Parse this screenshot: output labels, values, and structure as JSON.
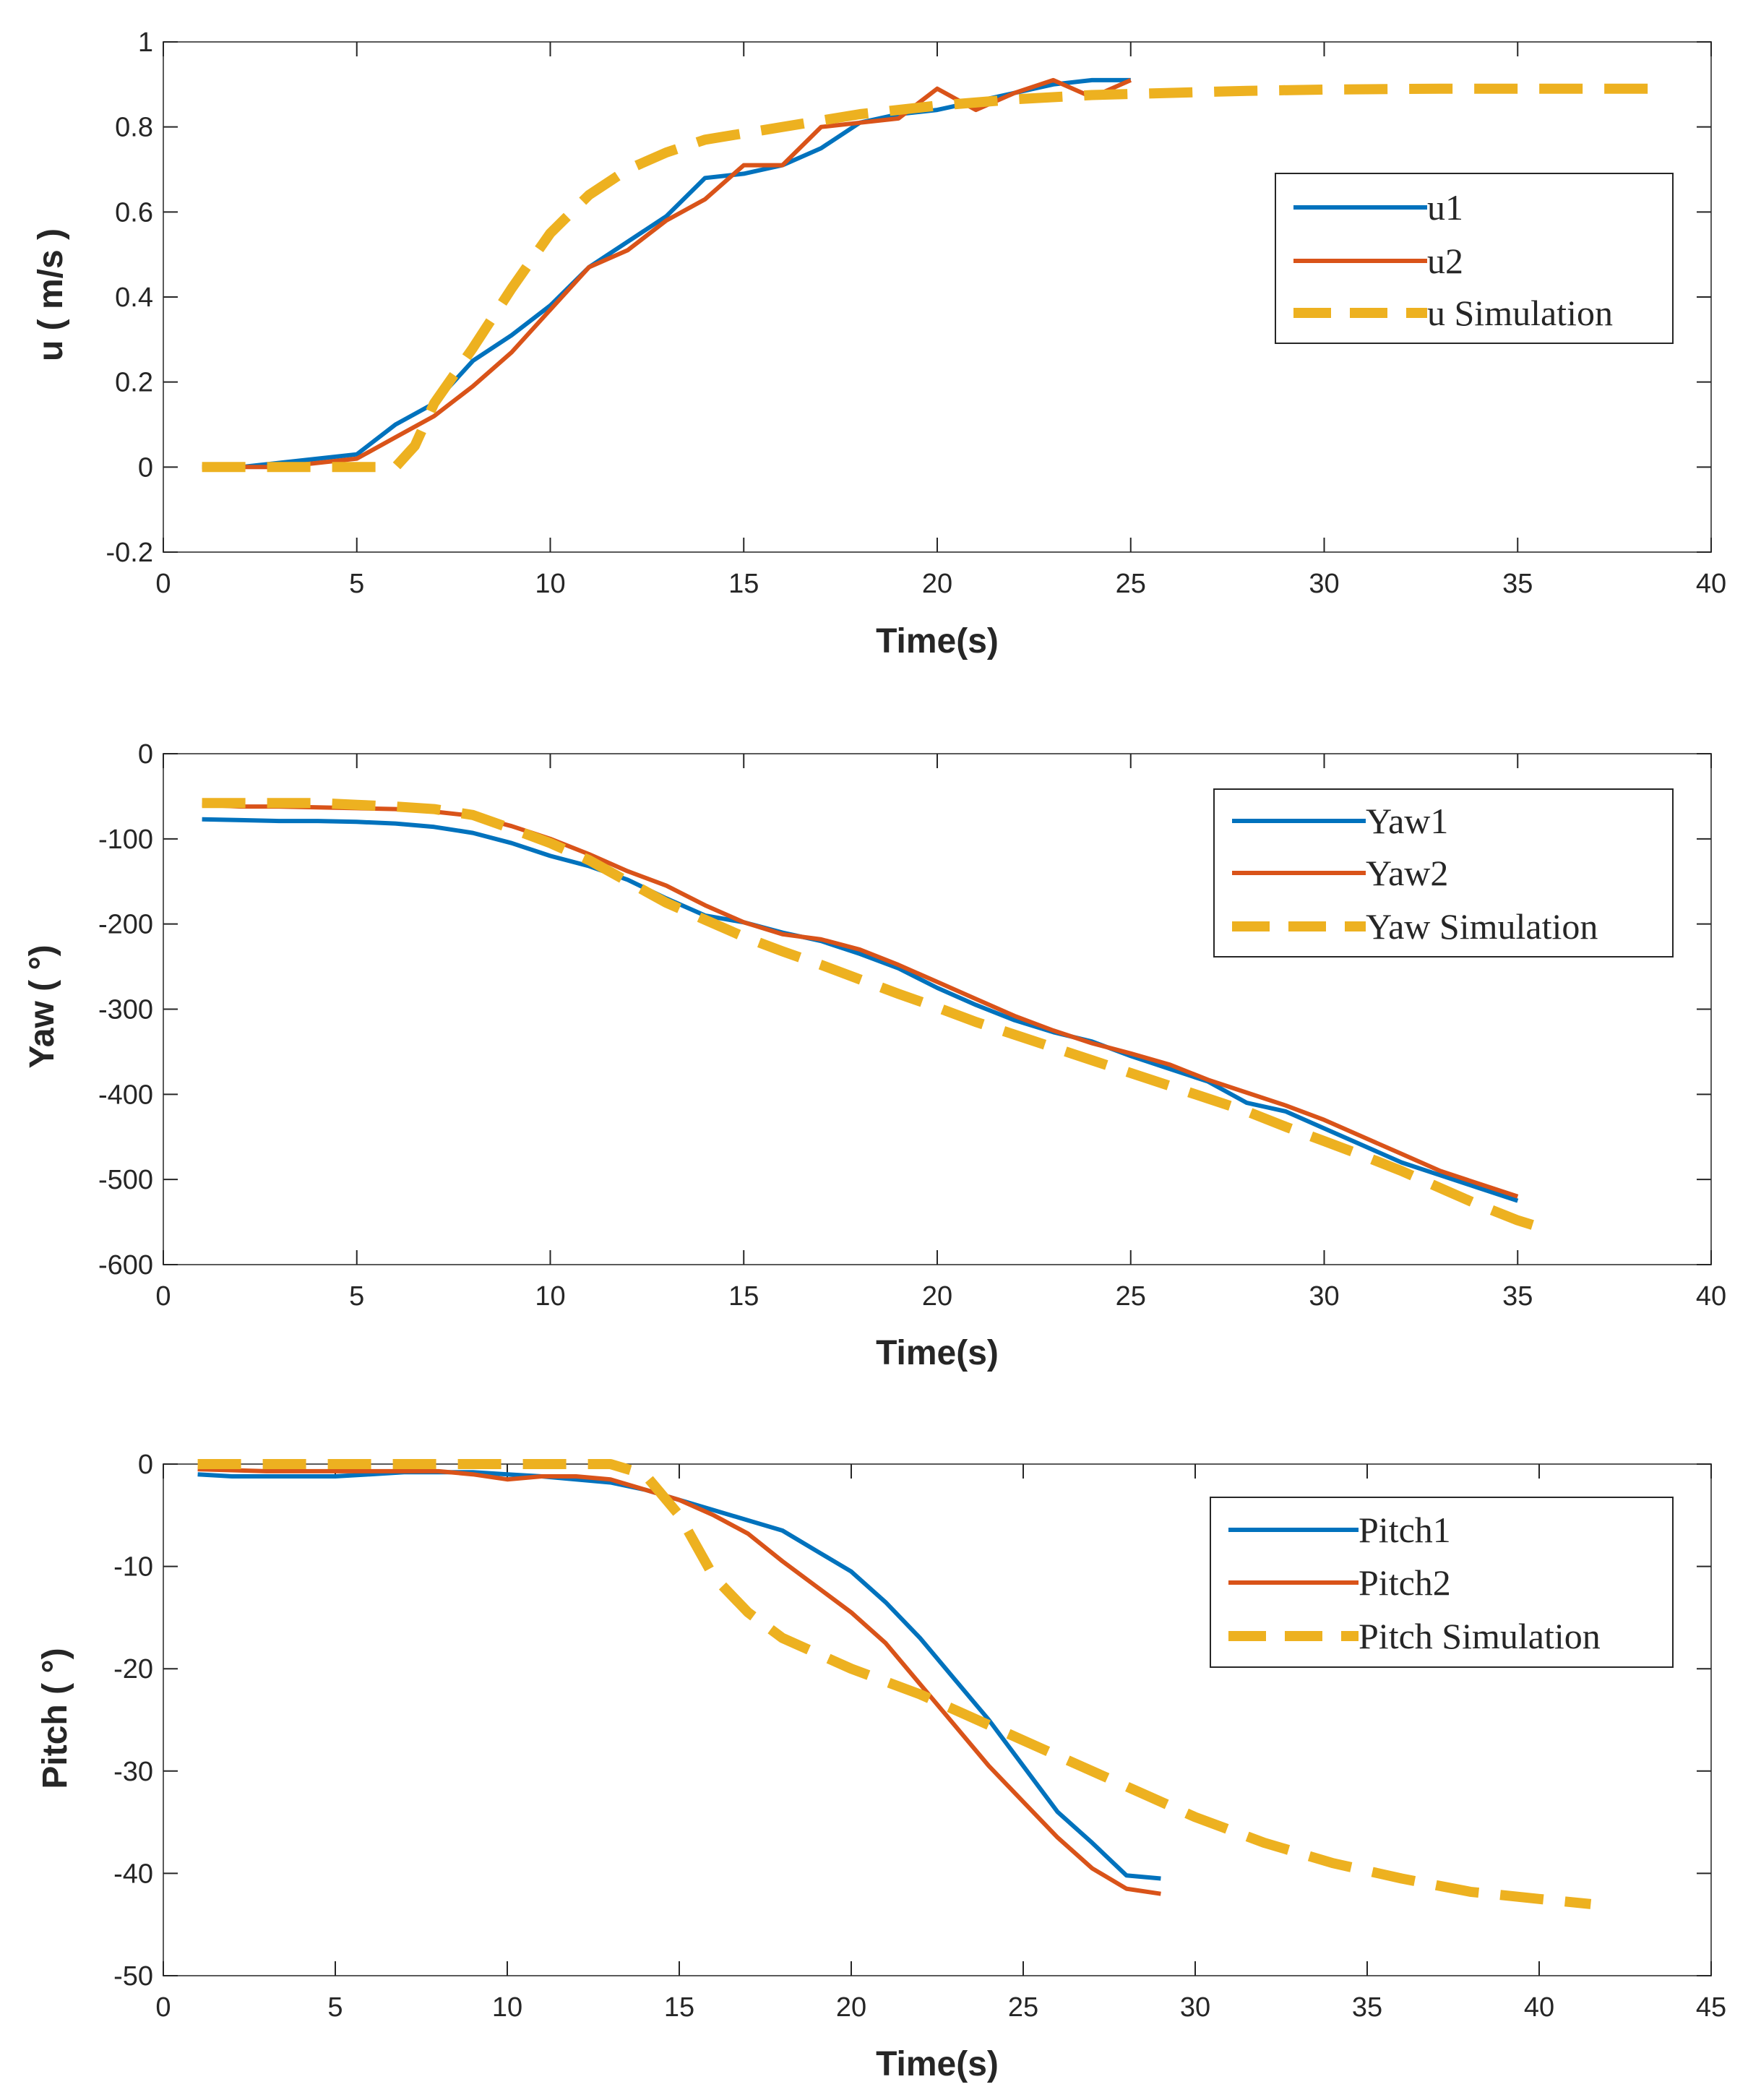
{
  "colors": {
    "series1": "#0072bd",
    "series2": "#d95319",
    "simulation": "#edb120",
    "axis": "#262626",
    "frame": "#5a5a5a",
    "background": "#ffffff"
  },
  "chart_data": [
    {
      "type": "line",
      "title": "",
      "xlabel": "Time(s)",
      "ylabel": "u ( m/s )",
      "xlim": [
        0,
        40
      ],
      "ylim": [
        -0.2,
        1
      ],
      "xticks": [
        0,
        5,
        10,
        15,
        20,
        25,
        30,
        35,
        40
      ],
      "yticks": [
        -0.2,
        0,
        0.2,
        0.4,
        0.6,
        0.8,
        1
      ],
      "legend_position": "right",
      "series": [
        {
          "name": "u1",
          "style": "solid",
          "x": [
            1,
            2,
            3,
            4,
            5,
            6,
            7,
            8,
            9,
            10,
            11,
            12,
            13,
            14,
            15,
            16,
            17,
            18,
            19,
            20,
            21,
            22,
            23,
            24,
            25
          ],
          "y": [
            0,
            0,
            0.01,
            0.02,
            0.03,
            0.1,
            0.15,
            0.25,
            0.31,
            0.38,
            0.47,
            0.53,
            0.59,
            0.68,
            0.69,
            0.71,
            0.75,
            0.81,
            0.83,
            0.84,
            0.86,
            0.88,
            0.9,
            0.91,
            0.91
          ]
        },
        {
          "name": "u2",
          "style": "solid",
          "x": [
            1,
            2,
            3,
            4,
            5,
            6,
            7,
            8,
            9,
            10,
            11,
            12,
            13,
            14,
            15,
            16,
            17,
            18,
            19,
            20,
            21,
            22,
            23,
            24,
            25
          ],
          "y": [
            0,
            0,
            0,
            0.01,
            0.02,
            0.07,
            0.12,
            0.19,
            0.27,
            0.37,
            0.47,
            0.51,
            0.58,
            0.63,
            0.71,
            0.71,
            0.8,
            0.81,
            0.82,
            0.89,
            0.84,
            0.88,
            0.91,
            0.87,
            0.91
          ]
        },
        {
          "name": "u Simulation",
          "style": "dashed",
          "x": [
            1,
            2,
            3,
            4,
            5,
            5.5,
            6,
            6.5,
            7,
            8,
            9,
            10,
            11,
            12,
            13,
            14,
            16,
            18,
            20,
            22,
            24,
            26,
            28,
            30,
            33,
            36,
            38.5
          ],
          "y": [
            0,
            0,
            0,
            0,
            0,
            0,
            0,
            0.05,
            0.15,
            0.28,
            0.42,
            0.55,
            0.64,
            0.7,
            0.74,
            0.77,
            0.8,
            0.83,
            0.85,
            0.865,
            0.875,
            0.88,
            0.885,
            0.888,
            0.89,
            0.89,
            0.89
          ]
        }
      ]
    },
    {
      "type": "line",
      "title": "",
      "xlabel": "Time(s)",
      "ylabel": "Yaw ( °)",
      "xlim": [
        0,
        40
      ],
      "ylim": [
        -600,
        0
      ],
      "xticks": [
        0,
        5,
        10,
        15,
        20,
        25,
        30,
        35,
        40
      ],
      "yticks": [
        -600,
        -500,
        -400,
        -300,
        -200,
        -100,
        0
      ],
      "legend_position": "right",
      "series": [
        {
          "name": "Yaw1",
          "style": "solid",
          "x": [
            1,
            2,
            3,
            4,
            5,
            6,
            7,
            8,
            9,
            10,
            11,
            12,
            13,
            14,
            15,
            16,
            17,
            18,
            19,
            20,
            21,
            22,
            23,
            24,
            25,
            26,
            27,
            28,
            29,
            30,
            31,
            32,
            33,
            34,
            35
          ],
          "y": [
            -77,
            -78,
            -79,
            -79,
            -80,
            -82,
            -86,
            -93,
            -105,
            -120,
            -132,
            -148,
            -170,
            -190,
            -198,
            -210,
            -220,
            -235,
            -252,
            -275,
            -295,
            -313,
            -327,
            -338,
            -355,
            -370,
            -385,
            -410,
            -420,
            -440,
            -460,
            -480,
            -495,
            -510,
            -525
          ]
        },
        {
          "name": "Yaw2",
          "style": "solid",
          "x": [
            1,
            2,
            3,
            4,
            5,
            6,
            7,
            8,
            9,
            10,
            11,
            12,
            13,
            14,
            15,
            16,
            17,
            18,
            19,
            20,
            21,
            22,
            23,
            24,
            25,
            26,
            27,
            28,
            29,
            30,
            31,
            32,
            33,
            34,
            35
          ],
          "y": [
            -60,
            -62,
            -62,
            -63,
            -64,
            -65,
            -68,
            -73,
            -85,
            -100,
            -118,
            -138,
            -155,
            -178,
            -198,
            -212,
            -218,
            -230,
            -248,
            -268,
            -288,
            -308,
            -325,
            -340,
            -352,
            -365,
            -383,
            -398,
            -413,
            -430,
            -450,
            -470,
            -490,
            -505,
            -520
          ]
        },
        {
          "name": "Yaw Simulation",
          "style": "dashed",
          "x": [
            1,
            2,
            3,
            4,
            5,
            6,
            7,
            8,
            9,
            10,
            11,
            12,
            13,
            14,
            15,
            16,
            17,
            18,
            19,
            20,
            21,
            22,
            23,
            24,
            25,
            26,
            27,
            28,
            29,
            30,
            31,
            32,
            33,
            34,
            35,
            35.5
          ],
          "y": [
            -58,
            -58,
            -58,
            -58,
            -60,
            -62,
            -65,
            -72,
            -88,
            -105,
            -125,
            -150,
            -175,
            -195,
            -215,
            -232,
            -248,
            -265,
            -282,
            -298,
            -315,
            -330,
            -345,
            -360,
            -375,
            -390,
            -405,
            -420,
            -438,
            -455,
            -472,
            -490,
            -510,
            -530,
            -548,
            -555
          ]
        }
      ]
    },
    {
      "type": "line",
      "title": "",
      "xlabel": "Time(s)",
      "ylabel": "Pitch ( °)",
      "xlim": [
        0,
        45
      ],
      "ylim": [
        -50,
        0
      ],
      "xticks": [
        0,
        5,
        10,
        15,
        20,
        25,
        30,
        35,
        40,
        45
      ],
      "yticks": [
        -50,
        -40,
        -30,
        -20,
        -10,
        0
      ],
      "legend_position": "right",
      "series": [
        {
          "name": "Pitch1",
          "style": "solid",
          "x": [
            1,
            2,
            3,
            4,
            5,
            6,
            7,
            8,
            9,
            10,
            11,
            12,
            13,
            14,
            15,
            16,
            17,
            18,
            19,
            20,
            21,
            22,
            23,
            24,
            25,
            26,
            27,
            28,
            29
          ],
          "y": [
            -1,
            -1.2,
            -1.2,
            -1.2,
            -1.2,
            -1,
            -0.8,
            -0.8,
            -0.8,
            -1,
            -1.2,
            -1.5,
            -1.8,
            -2.5,
            -3.5,
            -4.5,
            -5.5,
            -6.5,
            -8.5,
            -10.5,
            -13.5,
            -17,
            -21,
            -25,
            -29.5,
            -34,
            -37,
            -40.2,
            -40.5
          ]
        },
        {
          "name": "Pitch2",
          "style": "solid",
          "x": [
            1,
            2,
            3,
            4,
            5,
            6,
            7,
            8,
            9,
            10,
            11,
            12,
            13,
            14,
            15,
            16,
            17,
            18,
            19,
            20,
            21,
            22,
            23,
            24,
            25,
            26,
            27,
            28,
            29
          ],
          "y": [
            -0.5,
            -0.6,
            -0.7,
            -0.7,
            -0.7,
            -0.7,
            -0.7,
            -0.7,
            -1,
            -1.5,
            -1.2,
            -1.2,
            -1.5,
            -2.5,
            -3.5,
            -5,
            -6.8,
            -9.5,
            -12,
            -14.5,
            -17.5,
            -21.5,
            -25.5,
            -29.5,
            -33,
            -36.5,
            -39.5,
            -41.5,
            -42
          ]
        },
        {
          "name": "Pitch Simulation",
          "style": "dashed",
          "x": [
            1,
            3,
            5,
            7,
            9,
            11,
            13,
            14,
            15,
            16,
            17,
            18,
            20,
            22,
            24,
            26,
            28,
            30,
            32,
            34,
            36,
            38,
            40,
            41.5
          ],
          "y": [
            0,
            0,
            0,
            0,
            0,
            0,
            0,
            -1,
            -5,
            -11,
            -14.5,
            -17,
            -20,
            -22.5,
            -25.5,
            -28.5,
            -31.5,
            -34.5,
            -37,
            -39,
            -40.5,
            -41.8,
            -42.5,
            -43
          ]
        }
      ]
    }
  ]
}
